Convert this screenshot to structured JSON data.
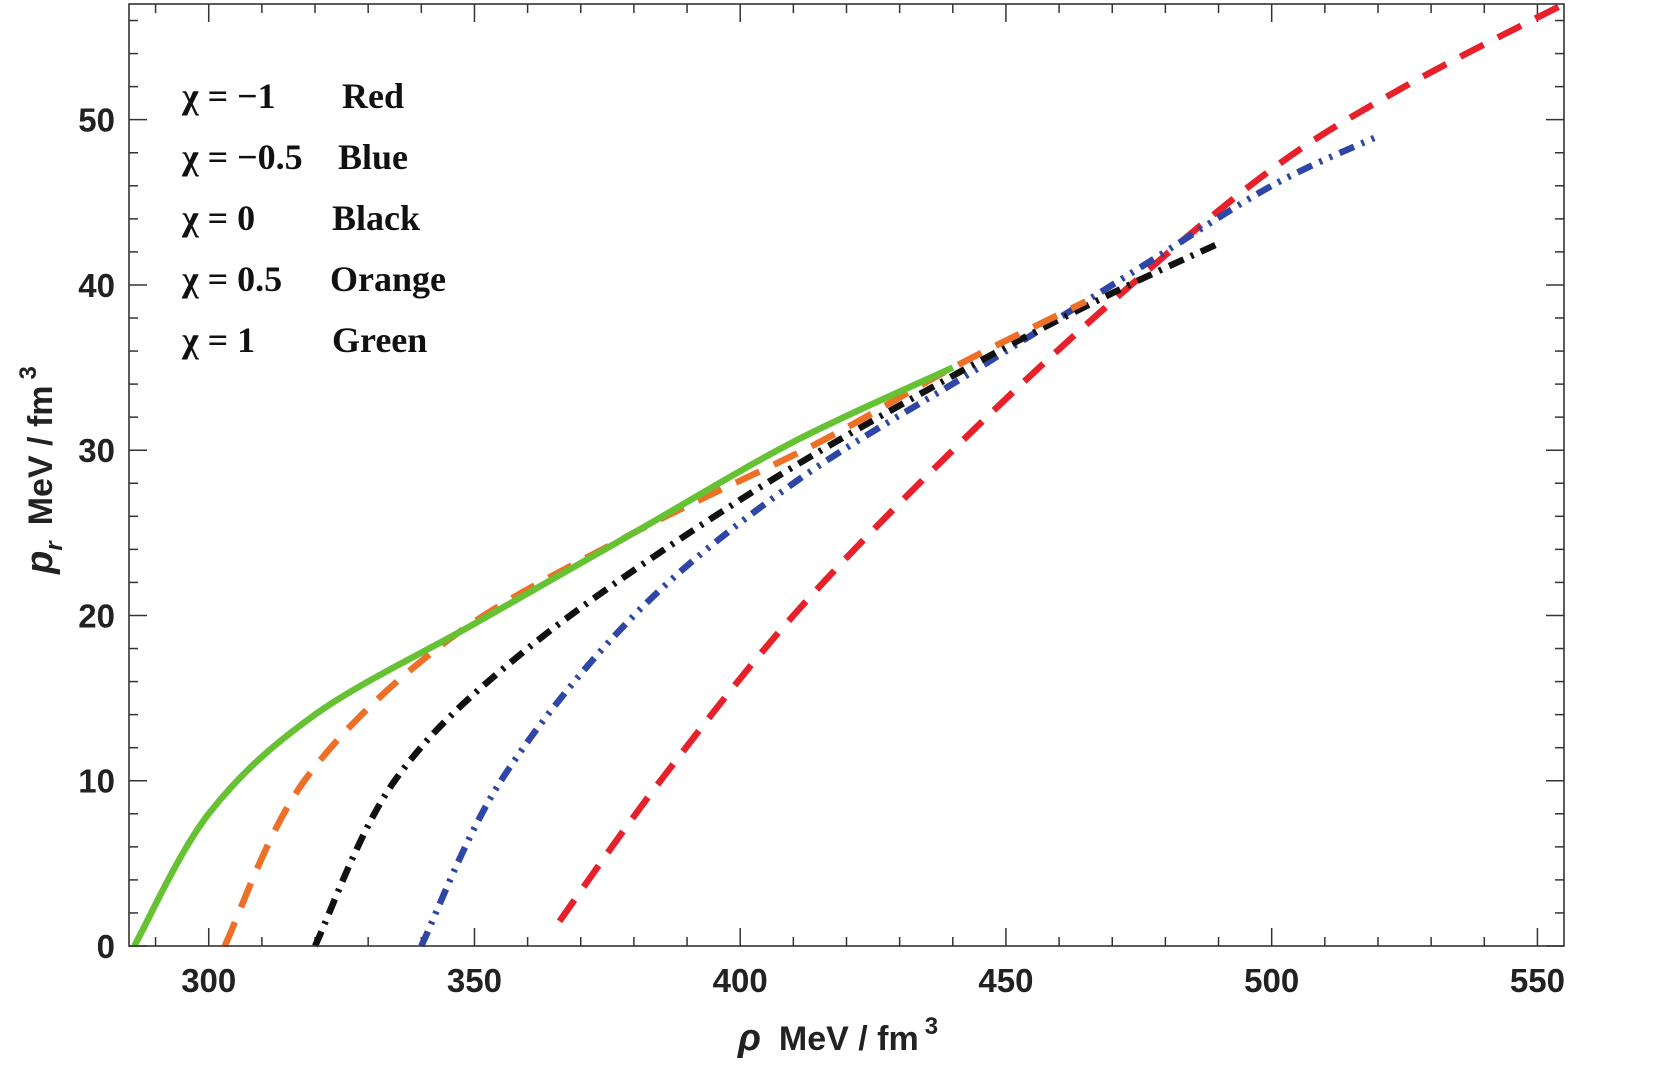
{
  "chart_data": {
    "type": "line",
    "title": "",
    "xlabel": {
      "symbol": "ρ",
      "unit": "MeV / fm",
      "exponent": "3"
    },
    "ylabel": {
      "symbol": "p",
      "subscript": "r",
      "unit": "MeV / fm",
      "exponent": "3"
    },
    "xlim": [
      285,
      555
    ],
    "ylim": [
      0,
      57
    ],
    "x_ticks": [
      300,
      350,
      400,
      450,
      500,
      550
    ],
    "y_ticks": [
      0,
      10,
      20,
      30,
      40,
      50
    ],
    "x_tick_labels": [
      "300",
      "350",
      "400",
      "450",
      "500",
      "550"
    ],
    "y_tick_labels": [
      "0",
      "10",
      "20",
      "30",
      "40",
      "50"
    ],
    "grid": false,
    "legend_position": "top-left",
    "series": [
      {
        "name": "Red",
        "chi": "χ = −1",
        "color": "#e8202a",
        "style": "dashed",
        "points": [
          [
            366,
            1.5
          ],
          [
            385,
            10
          ],
          [
            410,
            20
          ],
          [
            440,
            30
          ],
          [
            470,
            39
          ],
          [
            500,
            47
          ],
          [
            525,
            52
          ],
          [
            555,
            57
          ]
        ]
      },
      {
        "name": "Blue",
        "chi": "χ = −0.5",
        "color": "#2e47a6",
        "style": "dash-dot-dot",
        "points": [
          [
            340,
            0
          ],
          [
            355,
            10
          ],
          [
            380,
            20
          ],
          [
            410,
            28
          ],
          [
            445,
            35
          ],
          [
            475,
            41
          ],
          [
            500,
            46
          ],
          [
            520,
            49
          ]
        ]
      },
      {
        "name": "Black",
        "chi": "χ = 0",
        "color": "#111111",
        "style": "dash-dot",
        "points": [
          [
            320,
            0
          ],
          [
            335,
            10
          ],
          [
            360,
            18
          ],
          [
            400,
            27
          ],
          [
            440,
            34.5
          ],
          [
            470,
            39.5
          ],
          [
            490,
            42.5
          ]
        ]
      },
      {
        "name": "Orange",
        "chi": "χ = 0.5",
        "color": "#ee7027",
        "style": "dashed",
        "points": [
          [
            303,
            0
          ],
          [
            318,
            10
          ],
          [
            345,
            18.5
          ],
          [
            380,
            25
          ],
          [
            415,
            30.5
          ],
          [
            440,
            35
          ],
          [
            465,
            39
          ]
        ]
      },
      {
        "name": "Green",
        "chi": "χ = 1",
        "color": "#66c233",
        "style": "solid",
        "points": [
          [
            286,
            0
          ],
          [
            300,
            8
          ],
          [
            320,
            14
          ],
          [
            350,
            19.5
          ],
          [
            380,
            25
          ],
          [
            410,
            30.5
          ],
          [
            440,
            35
          ]
        ]
      }
    ],
    "legend": [
      {
        "chi": "χ = −1",
        "label": "Red"
      },
      {
        "chi": "χ = −0.5",
        "label": "Blue"
      },
      {
        "chi": "χ = 0",
        "label": "Black"
      },
      {
        "chi": "χ = 0.5",
        "label": "Orange"
      },
      {
        "chi": "χ = 1",
        "label": "Green"
      }
    ]
  }
}
